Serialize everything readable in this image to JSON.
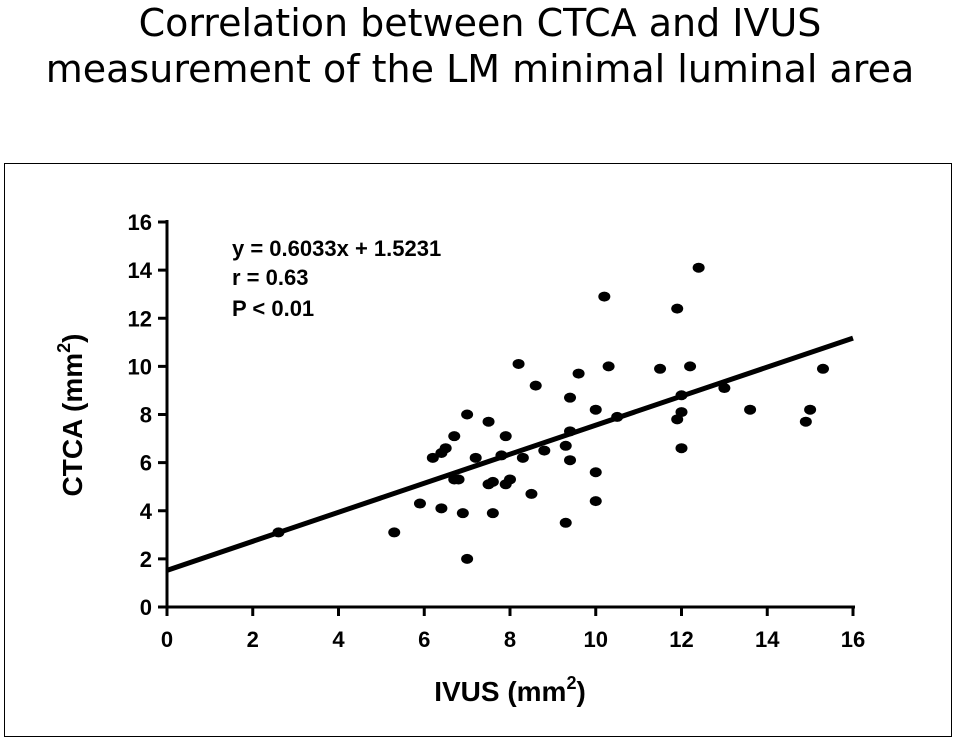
{
  "title_line1": "Correlation between CTCA and IVUS",
  "title_line2": "measurement of the LM minimal  luminal area",
  "chart_data": {
    "type": "scatter",
    "title": "Correlation between CTCA and IVUS measurement of the LM minimal  luminal area",
    "xlabel": "IVUS (mm",
    "xlabel_sup": "2",
    "xlabel_close": ")",
    "ylabel": "CTCA (mm",
    "ylabel_sup": "2",
    "ylabel_close": ")",
    "xlim": [
      0,
      16
    ],
    "ylim": [
      0,
      16
    ],
    "xticks": [
      "0",
      "2",
      "4",
      "6",
      "8",
      "10",
      "12",
      "14",
      "16"
    ],
    "yticks": [
      "0",
      "2",
      "4",
      "6",
      "8",
      "10",
      "12",
      "14",
      "16"
    ],
    "grid": false,
    "annotations": [
      "y = 0.6033x + 1.5231",
      "r = 0.63",
      "P < 0.01"
    ],
    "regression": {
      "slope": 0.6033,
      "intercept": 1.5231
    },
    "points": [
      [
        2.6,
        3.1
      ],
      [
        5.3,
        3.1
      ],
      [
        5.9,
        4.3
      ],
      [
        6.2,
        6.2
      ],
      [
        6.4,
        6.4
      ],
      [
        6.4,
        4.1
      ],
      [
        6.5,
        6.6
      ],
      [
        6.7,
        7.1
      ],
      [
        6.7,
        5.3
      ],
      [
        6.8,
        5.3
      ],
      [
        6.9,
        3.9
      ],
      [
        7.0,
        8.0
      ],
      [
        7.0,
        2.0
      ],
      [
        7.2,
        6.2
      ],
      [
        7.5,
        7.7
      ],
      [
        7.5,
        5.1
      ],
      [
        7.6,
        5.2
      ],
      [
        7.6,
        3.9
      ],
      [
        7.8,
        6.3
      ],
      [
        7.9,
        7.1
      ],
      [
        7.9,
        5.1
      ],
      [
        8.0,
        5.3
      ],
      [
        8.2,
        10.1
      ],
      [
        8.3,
        6.2
      ],
      [
        8.5,
        4.7
      ],
      [
        8.6,
        9.2
      ],
      [
        8.8,
        6.5
      ],
      [
        9.3,
        6.7
      ],
      [
        9.3,
        3.5
      ],
      [
        9.4,
        8.7
      ],
      [
        9.4,
        7.3
      ],
      [
        9.4,
        6.1
      ],
      [
        9.6,
        9.7
      ],
      [
        10.0,
        8.2
      ],
      [
        10.0,
        5.6
      ],
      [
        10.0,
        4.4
      ],
      [
        10.2,
        12.9
      ],
      [
        10.3,
        10.0
      ],
      [
        10.5,
        7.9
      ],
      [
        11.5,
        9.9
      ],
      [
        11.9,
        12.4
      ],
      [
        11.9,
        7.8
      ],
      [
        12.0,
        8.1
      ],
      [
        12.0,
        8.8
      ],
      [
        12.0,
        6.6
      ],
      [
        12.2,
        10.0
      ],
      [
        12.4,
        14.1
      ],
      [
        13.0,
        9.1
      ],
      [
        13.6,
        8.2
      ],
      [
        14.9,
        7.7
      ],
      [
        15.0,
        8.2
      ],
      [
        15.3,
        9.9
      ]
    ]
  }
}
